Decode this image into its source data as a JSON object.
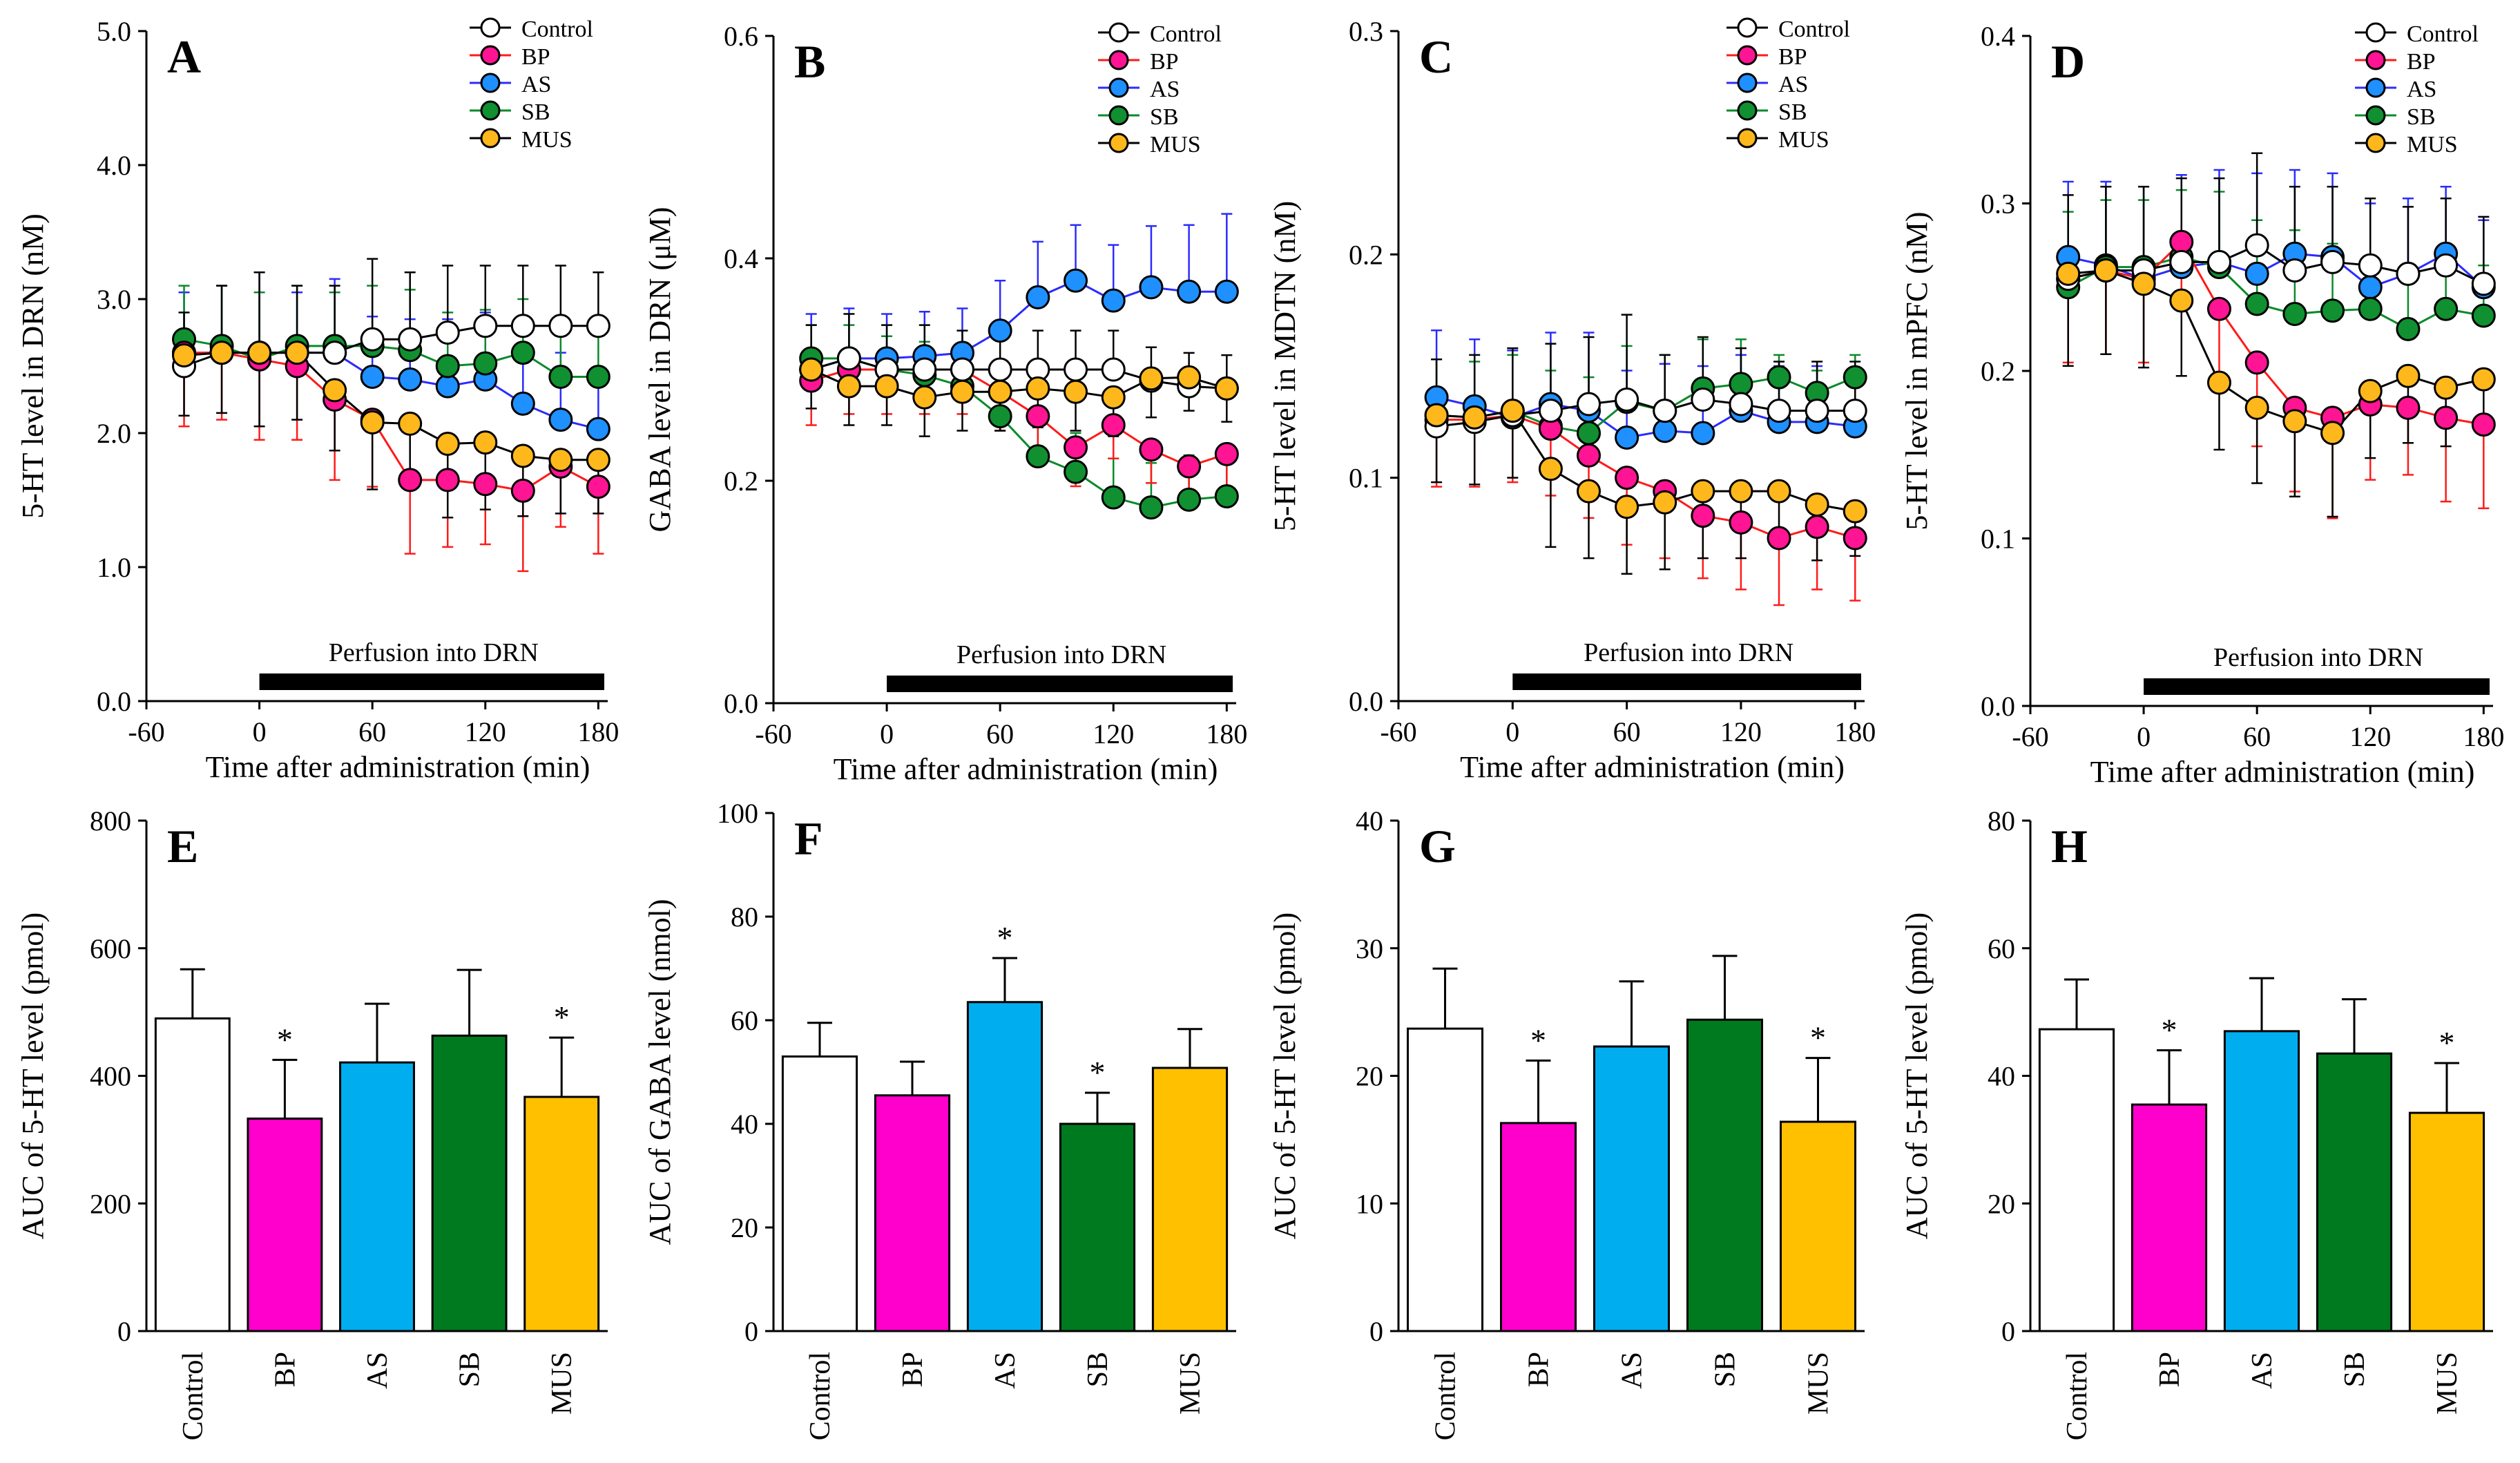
{
  "colors": {
    "Control": "#ffffff",
    "BP": "#ff1493",
    "AS": "#1e90ff",
    "SB": "#109030",
    "MUS": "#ffb81c"
  },
  "line_colors": {
    "Control": "#000000",
    "BP": "#ff1a1a",
    "AS": "#2b2bff",
    "SB": "#0a8a2a",
    "MUS": "#000000"
  },
  "bar_colors": {
    "Control": "#ffffff",
    "BP": "#ff00cc",
    "AS": "#00aeef",
    "SB": "#007a1f",
    "MUS": "#ffc000"
  },
  "chart_data": [
    {
      "type": "line",
      "panel": "A",
      "ylabel": "5-HT level in DRN (nM)",
      "xlabel": "Time after administration (min)",
      "ylim": [
        0,
        5
      ],
      "yticks": [
        "0.0",
        "1.0",
        "2.0",
        "3.0",
        "4.0",
        "5.0"
      ],
      "xlim": [
        -60,
        185
      ],
      "xticks": [
        "-60",
        "0",
        "60",
        "120",
        "180"
      ],
      "bar_label": "Perfusion into DRN",
      "legend": [
        "Control",
        "BP",
        "AS",
        "SB",
        "MUS"
      ],
      "x": [
        -40,
        -20,
        0,
        20,
        40,
        60,
        80,
        100,
        120,
        140,
        160,
        180
      ],
      "series": [
        {
          "name": "Control",
          "values": [
            2.5,
            2.6,
            2.6,
            2.6,
            2.6,
            2.7,
            2.7,
            2.75,
            2.8,
            2.8,
            2.8,
            2.8
          ],
          "err": [
            0.4,
            0.5,
            0.6,
            0.5,
            0.5,
            0.6,
            0.5,
            0.5,
            0.45,
            0.45,
            0.45,
            0.4
          ]
        },
        {
          "name": "BP",
          "values": [
            2.6,
            2.6,
            2.55,
            2.5,
            2.25,
            2.1,
            1.65,
            1.65,
            1.62,
            1.57,
            1.75,
            1.6
          ],
          "err": [
            0.55,
            0.5,
            0.6,
            0.55,
            0.6,
            0.5,
            0.55,
            0.5,
            0.45,
            0.6,
            0.45,
            0.5
          ]
        },
        {
          "name": "AS",
          "values": [
            2.6,
            2.6,
            2.6,
            2.6,
            2.6,
            2.42,
            2.4,
            2.35,
            2.4,
            2.22,
            2.1,
            2.03
          ],
          "err": [
            0.45,
            0.5,
            0.6,
            0.45,
            0.55,
            0.45,
            0.45,
            0.5,
            0.5,
            0.45,
            0.5,
            0.4
          ]
        },
        {
          "name": "SB",
          "values": [
            2.7,
            2.65,
            2.55,
            2.65,
            2.65,
            2.65,
            2.62,
            2.5,
            2.52,
            2.6,
            2.42,
            2.42
          ],
          "err": [
            0.4,
            0.45,
            0.5,
            0.45,
            0.4,
            0.45,
            0.45,
            0.4,
            0.4,
            0.4,
            0.4,
            0.35
          ]
        },
        {
          "name": "MUS",
          "values": [
            2.58,
            2.6,
            2.6,
            2.6,
            2.32,
            2.08,
            2.07,
            1.92,
            1.93,
            1.83,
            1.8,
            1.8
          ],
          "err": [
            0.45,
            0.45,
            0.55,
            0.5,
            0.45,
            0.5,
            0.45,
            0.55,
            0.5,
            0.45,
            0.4,
            0.4
          ]
        }
      ]
    },
    {
      "type": "line",
      "panel": "B",
      "ylabel": "GABA level in DRN (μM)",
      "xlabel": "Time after administration (min)",
      "ylim": [
        0,
        0.6
      ],
      "yticks": [
        "0.0",
        "0.2",
        "0.4",
        "0.6"
      ],
      "xlim": [
        -60,
        185
      ],
      "xticks": [
        "-60",
        "0",
        "60",
        "120",
        "180"
      ],
      "bar_label": "Perfusion into DRN",
      "legend": [
        "Control",
        "BP",
        "AS",
        "SB",
        "MUS"
      ],
      "x": [
        -40,
        -20,
        0,
        20,
        40,
        60,
        80,
        100,
        120,
        140,
        160,
        180
      ],
      "series": [
        {
          "name": "Control",
          "values": [
            0.3,
            0.31,
            0.3,
            0.3,
            0.3,
            0.3,
            0.3,
            0.3,
            0.3,
            0.29,
            0.285,
            0.283
          ],
          "err": [
            0.04,
            0.04,
            0.04,
            0.04,
            0.035,
            0.035,
            0.035,
            0.035,
            0.035,
            0.03,
            0.03,
            0.03
          ]
        },
        {
          "name": "BP",
          "values": [
            0.29,
            0.3,
            0.3,
            0.3,
            0.3,
            0.28,
            0.258,
            0.23,
            0.25,
            0.228,
            0.213,
            0.224
          ],
          "err": [
            0.04,
            0.04,
            0.04,
            0.04,
            0.04,
            0.035,
            0.035,
            0.035,
            0.03,
            0.03,
            0.03,
            0.03
          ]
        },
        {
          "name": "AS",
          "values": [
            0.3,
            0.31,
            0.31,
            0.312,
            0.315,
            0.335,
            0.365,
            0.38,
            0.362,
            0.374,
            0.37,
            0.37
          ],
          "err": [
            0.05,
            0.045,
            0.04,
            0.04,
            0.04,
            0.045,
            0.05,
            0.05,
            0.05,
            0.055,
            0.06,
            0.07
          ]
        },
        {
          "name": "SB",
          "values": [
            0.31,
            0.31,
            0.3,
            0.295,
            0.285,
            0.258,
            0.222,
            0.208,
            0.185,
            0.176,
            0.183,
            0.186
          ],
          "err": [
            0.03,
            0.03,
            0.03,
            0.03,
            0.03,
            0.03,
            0.03,
            0.035,
            0.035,
            0.04,
            0.04,
            0.035
          ]
        },
        {
          "name": "MUS",
          "values": [
            0.3,
            0.285,
            0.285,
            0.275,
            0.28,
            0.28,
            0.283,
            0.28,
            0.275,
            0.292,
            0.293,
            0.283
          ],
          "err": [
            0.035,
            0.035,
            0.035,
            0.035,
            0.035,
            0.035,
            0.035,
            0.035,
            0.035,
            0.035,
            0.03,
            0.03
          ]
        }
      ]
    },
    {
      "type": "line",
      "panel": "C",
      "ylabel": "5-HT level in MDTN (nM)",
      "xlabel": "Time after administration (min)",
      "ylim": [
        0,
        0.3
      ],
      "yticks": [
        "0.0",
        "0.1",
        "0.2",
        "0.3"
      ],
      "xlim": [
        -60,
        185
      ],
      "xticks": [
        "-60",
        "0",
        "60",
        "120",
        "180"
      ],
      "bar_label": "Perfusion into DRN",
      "legend": [
        "Control",
        "BP",
        "AS",
        "SB",
        "MUS"
      ],
      "x": [
        -40,
        -20,
        0,
        20,
        40,
        60,
        80,
        100,
        120,
        140,
        160,
        180
      ],
      "series": [
        {
          "name": "Control",
          "values": [
            0.123,
            0.125,
            0.128,
            0.13,
            0.133,
            0.135,
            0.13,
            0.135,
            0.133,
            0.13,
            0.13,
            0.13
          ],
          "err": [
            0.03,
            0.03,
            0.03,
            0.03,
            0.03,
            0.038,
            0.025,
            0.028,
            0.025,
            0.022,
            0.022,
            0.022
          ]
        },
        {
          "name": "BP",
          "values": [
            0.126,
            0.126,
            0.128,
            0.122,
            0.11,
            0.1,
            0.094,
            0.083,
            0.08,
            0.073,
            0.078,
            0.073
          ],
          "err": [
            0.03,
            0.03,
            0.03,
            0.03,
            0.028,
            0.03,
            0.03,
            0.028,
            0.03,
            0.03,
            0.028,
            0.028
          ]
        },
        {
          "name": "AS",
          "values": [
            0.136,
            0.132,
            0.127,
            0.133,
            0.13,
            0.118,
            0.121,
            0.12,
            0.13,
            0.125,
            0.125,
            0.123
          ],
          "err": [
            0.03,
            0.03,
            0.03,
            0.032,
            0.035,
            0.03,
            0.03,
            0.03,
            0.025,
            0.025,
            0.025,
            0.025
          ]
        },
        {
          "name": "SB",
          "values": [
            0.128,
            0.127,
            0.13,
            0.123,
            0.12,
            0.134,
            0.13,
            0.14,
            0.142,
            0.145,
            0.138,
            0.145
          ],
          "err": [
            0.025,
            0.025,
            0.025,
            0.025,
            0.025,
            0.025,
            0.025,
            0.022,
            0.02,
            0.01,
            0.01,
            0.01
          ]
        },
        {
          "name": "MUS",
          "values": [
            0.128,
            0.127,
            0.13,
            0.104,
            0.094,
            0.087,
            0.089,
            0.094,
            0.094,
            0.094,
            0.088,
            0.085
          ],
          "err": [
            0.03,
            0.03,
            0.03,
            0.035,
            0.03,
            0.03,
            0.03,
            0.03,
            0.03,
            0.025,
            0.025,
            0.02
          ]
        }
      ]
    },
    {
      "type": "line",
      "panel": "D",
      "ylabel": "5-HT level in mPFC (nM)",
      "xlabel": "Time after administration (min)",
      "ylim": [
        0,
        0.4
      ],
      "yticks": [
        "0.0",
        "0.1",
        "0.2",
        "0.3",
        "0.4"
      ],
      "xlim": [
        -60,
        185
      ],
      "xticks": [
        "-60",
        "0",
        "60",
        "120",
        "180"
      ],
      "bar_label": "Perfusion into DRN",
      "legend": [
        "Control",
        "BP",
        "AS",
        "SB",
        "MUS"
      ],
      "x": [
        -40,
        -20,
        0,
        20,
        40,
        60,
        80,
        100,
        120,
        140,
        160,
        180
      ],
      "series": [
        {
          "name": "Control",
          "values": [
            0.255,
            0.26,
            0.26,
            0.265,
            0.265,
            0.275,
            0.26,
            0.265,
            0.263,
            0.258,
            0.263,
            0.252
          ],
          "err": [
            0.05,
            0.05,
            0.05,
            0.05,
            0.05,
            0.055,
            0.05,
            0.045,
            0.04,
            0.04,
            0.04,
            0.04
          ]
        },
        {
          "name": "BP",
          "values": [
            0.255,
            0.26,
            0.255,
            0.277,
            0.237,
            0.205,
            0.178,
            0.172,
            0.18,
            0.178,
            0.172,
            0.168
          ],
          "err": [
            0.05,
            0.05,
            0.05,
            0.04,
            0.045,
            0.05,
            0.05,
            0.06,
            0.045,
            0.04,
            0.05,
            0.05
          ]
        },
        {
          "name": "AS",
          "values": [
            0.268,
            0.263,
            0.255,
            0.262,
            0.265,
            0.258,
            0.27,
            0.268,
            0.25,
            0.258,
            0.27,
            0.25
          ],
          "err": [
            0.045,
            0.05,
            0.055,
            0.055,
            0.055,
            0.06,
            0.05,
            0.05,
            0.05,
            0.045,
            0.04,
            0.04
          ]
        },
        {
          "name": "SB",
          "values": [
            0.25,
            0.262,
            0.262,
            0.268,
            0.262,
            0.24,
            0.234,
            0.236,
            0.237,
            0.225,
            0.237,
            0.233
          ],
          "err": [
            0.045,
            0.04,
            0.04,
            0.04,
            0.045,
            0.05,
            0.05,
            0.04,
            0.03,
            0.03,
            0.03,
            0.03
          ]
        },
        {
          "name": "MUS",
          "values": [
            0.258,
            0.26,
            0.252,
            0.242,
            0.193,
            0.178,
            0.17,
            0.163,
            0.188,
            0.197,
            0.19,
            0.195
          ],
          "err": [
            0.055,
            0.05,
            0.05,
            0.045,
            0.04,
            0.045,
            0.045,
            0.05,
            0.04,
            0.04,
            0.035,
            0.03
          ]
        }
      ]
    },
    {
      "type": "bar",
      "panel": "E",
      "ylabel": "AUC of 5-HT level (pmol)",
      "ylim": [
        0,
        800
      ],
      "yticks": [
        "0",
        "200",
        "400",
        "600",
        "800"
      ],
      "categories": [
        "Control",
        "BP",
        "AS",
        "SB",
        "MUS"
      ],
      "values": [
        490,
        333,
        421,
        463,
        367
      ],
      "err": [
        77,
        92,
        92,
        103,
        93
      ],
      "significant": [
        false,
        true,
        false,
        false,
        true
      ],
      "sig_mark": "*"
    },
    {
      "type": "bar",
      "panel": "F",
      "ylabel": "AUC of GABA level (nmol)",
      "ylim": [
        0,
        100
      ],
      "yticks": [
        "0",
        "20",
        "40",
        "60",
        "80",
        "100"
      ],
      "categories": [
        "Control",
        "BP",
        "AS",
        "SB",
        "MUS"
      ],
      "values": [
        53,
        45.5,
        63.5,
        40,
        50.8
      ],
      "err": [
        6.5,
        6.5,
        8.5,
        6,
        7.5
      ],
      "significant": [
        false,
        false,
        true,
        true,
        false
      ],
      "sig_mark": "*"
    },
    {
      "type": "bar",
      "panel": "G",
      "ylabel": "AUC of 5-HT level (pmol)",
      "ylim": [
        0,
        40
      ],
      "yticks": [
        "0",
        "10",
        "20",
        "30",
        "40"
      ],
      "categories": [
        "Control",
        "BP",
        "AS",
        "SB",
        "MUS"
      ],
      "values": [
        23.7,
        16.3,
        22.3,
        24.4,
        16.4
      ],
      "err": [
        4.7,
        4.9,
        5.1,
        5,
        5
      ],
      "significant": [
        false,
        true,
        false,
        false,
        true
      ],
      "sig_mark": "*"
    },
    {
      "type": "bar",
      "panel": "H",
      "ylabel": "AUC of 5-HT level (pmol)",
      "ylim": [
        0,
        80
      ],
      "yticks": [
        "0",
        "20",
        "40",
        "60",
        "80"
      ],
      "categories": [
        "Control",
        "BP",
        "AS",
        "SB",
        "MUS"
      ],
      "values": [
        47.3,
        35.5,
        47,
        43.5,
        34.2
      ],
      "err": [
        7.8,
        8.5,
        8.3,
        8.5,
        7.8
      ],
      "significant": [
        false,
        true,
        false,
        false,
        true
      ],
      "sig_mark": "*"
    }
  ]
}
